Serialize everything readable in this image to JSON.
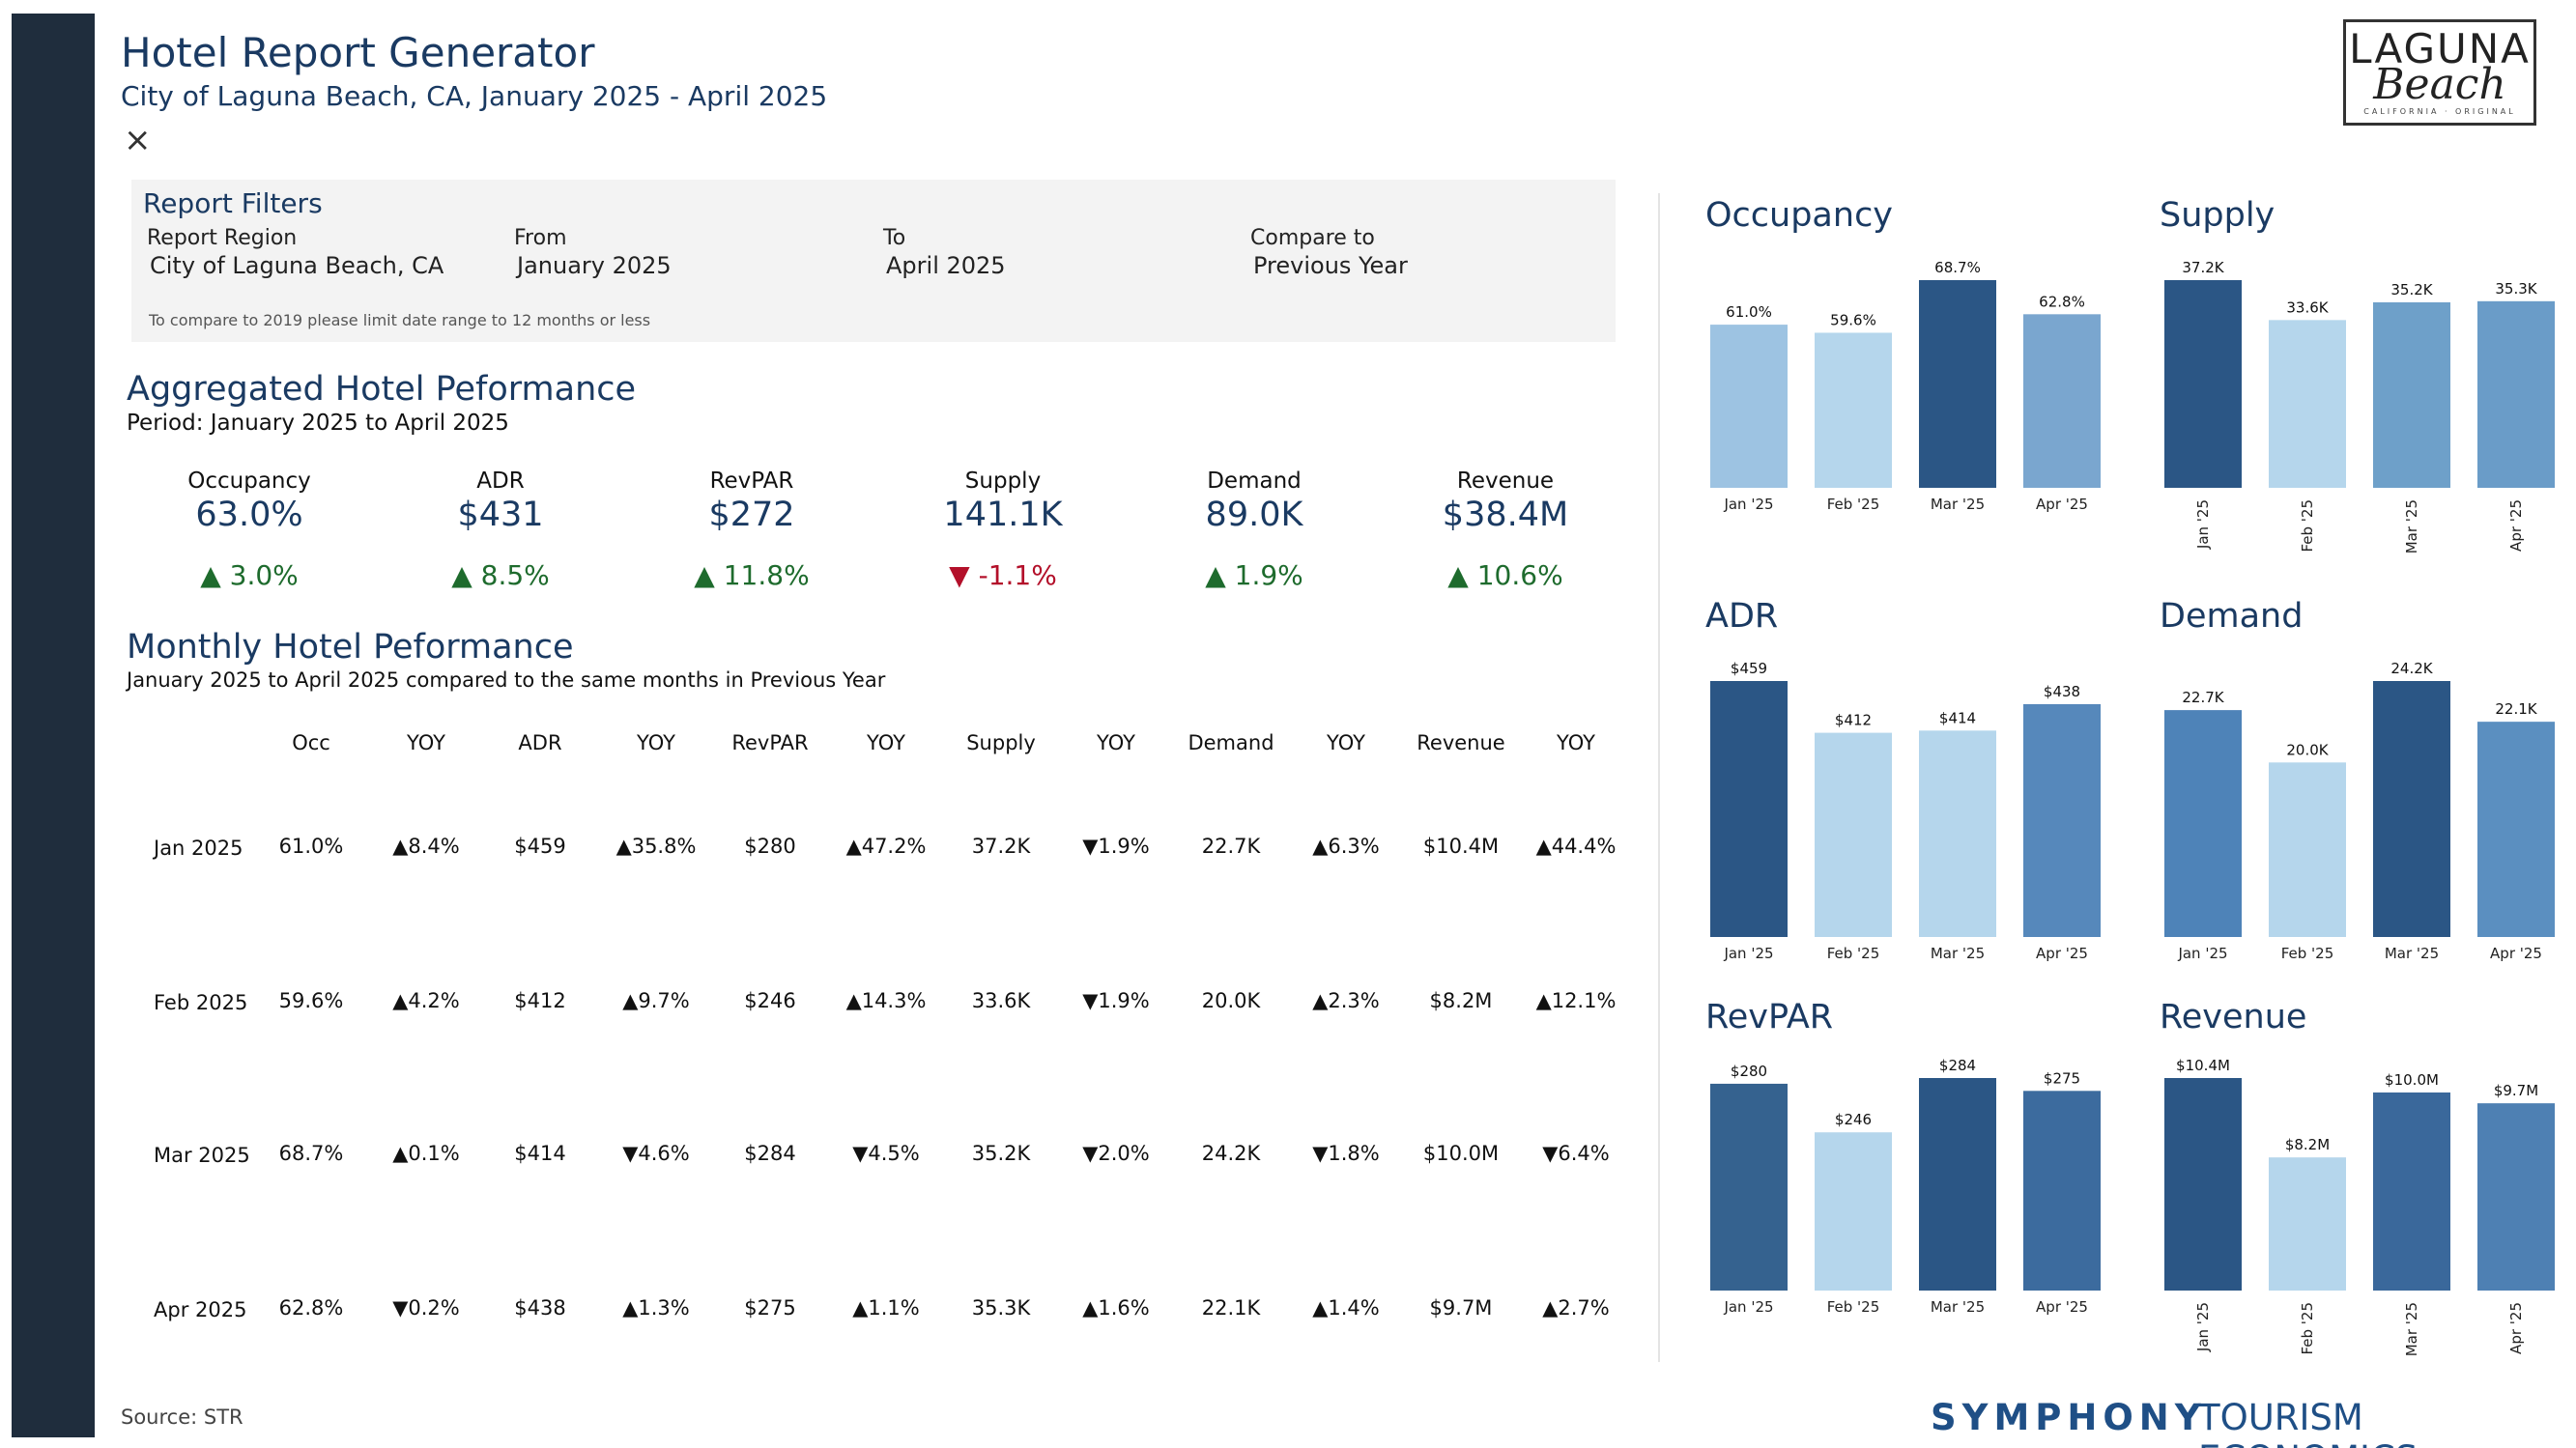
{
  "header": {
    "title": "Hotel Report Generator",
    "subtitle": "City of Laguna Beach, CA, January 2025 - April 2025",
    "close_icon": "×"
  },
  "logo": {
    "line1": "LAGUNA",
    "line2": "Beach",
    "line3": "CALIFORNIA · ORIGINAL"
  },
  "filters": {
    "title": "Report Filters",
    "fields": [
      {
        "label": "Report Region",
        "value": "City of Laguna Beach, CA"
      },
      {
        "label": "From",
        "value": "January 2025"
      },
      {
        "label": "To",
        "value": "April 2025"
      },
      {
        "label": "Compare to",
        "value": "Previous Year"
      }
    ],
    "note": "To compare to 2019 please limit date range to 12 months or less"
  },
  "aggregated": {
    "title": "Aggregated Hotel Peformance",
    "period": "Period: January 2025 to April 2025",
    "kpis": [
      {
        "label": "Occupancy",
        "value": "63.0%",
        "change": "▲ 3.0%",
        "dir": "up"
      },
      {
        "label": "ADR",
        "value": "$431",
        "change": "▲ 8.5%",
        "dir": "up"
      },
      {
        "label": "RevPAR",
        "value": "$272",
        "change": "▲ 11.8%",
        "dir": "up"
      },
      {
        "label": "Supply",
        "value": "141.1K",
        "change": "▼ -1.1%",
        "dir": "down"
      },
      {
        "label": "Demand",
        "value": "89.0K",
        "change": "▲ 1.9%",
        "dir": "up"
      },
      {
        "label": "Revenue",
        "value": "$38.4M",
        "change": "▲ 10.6%",
        "dir": "up"
      }
    ]
  },
  "monthly": {
    "title": "Monthly Hotel Peformance",
    "subtitle": "January 2025 to April 2025 compared to the same months in Previous Year",
    "headers": [
      "Occ",
      "YOY",
      "ADR",
      "YOY",
      "RevPAR",
      "YOY",
      "Supply",
      "YOY",
      "Demand",
      "YOY",
      "Revenue",
      "YOY"
    ],
    "rows": [
      {
        "label": "Jan 2025",
        "cells": [
          "61.0%",
          "▲8.4%",
          "$459",
          "▲35.8%",
          "$280",
          "▲47.2%",
          "37.2K",
          "▼1.9%",
          "22.7K",
          "▲6.3%",
          "$10.4M",
          "▲44.4%"
        ]
      },
      {
        "label": "Feb 2025",
        "cells": [
          "59.6%",
          "▲4.2%",
          "$412",
          "▲9.7%",
          "$246",
          "▲14.3%",
          "33.6K",
          "▼1.9%",
          "20.0K",
          "▲2.3%",
          "$8.2M",
          "▲12.1%"
        ]
      },
      {
        "label": "Mar 2025",
        "cells": [
          "68.7%",
          "▲0.1%",
          "$414",
          "▼4.6%",
          "$284",
          "▼4.5%",
          "35.2K",
          "▼2.0%",
          "24.2K",
          "▼1.8%",
          "$10.0M",
          "▼6.4%"
        ]
      },
      {
        "label": "Apr 2025",
        "cells": [
          "62.8%",
          "▼0.2%",
          "$438",
          "▲1.3%",
          "$275",
          "▲1.1%",
          "35.3K",
          "▲1.6%",
          "22.1K",
          "▲1.4%",
          "$9.7M",
          "▲2.7%"
        ]
      }
    ]
  },
  "chart_data": [
    {
      "type": "bar",
      "title": "Occupancy",
      "categories": [
        "Jan '25",
        "Feb '25",
        "Mar '25",
        "Apr '25"
      ],
      "values": [
        61.0,
        59.6,
        68.7,
        62.8
      ],
      "labels": [
        "61.0%",
        "59.6%",
        "68.7%",
        "62.8%"
      ],
      "colors": [
        "#9dc3e2",
        "#b5d6ec",
        "#2b5685",
        "#7aa6cf"
      ]
    },
    {
      "type": "bar",
      "title": "Supply",
      "categories": [
        "Jan '25",
        "Feb '25",
        "Mar '25",
        "Apr '25"
      ],
      "values": [
        37.2,
        33.6,
        35.2,
        35.3
      ],
      "labels": [
        "37.2K",
        "33.6K",
        "35.2K",
        "35.3K"
      ],
      "colors": [
        "#2b5685",
        "#b5d6ec",
        "#6ea0c9",
        "#6a9cc8"
      ]
    },
    {
      "type": "bar",
      "title": "ADR",
      "categories": [
        "Jan '25",
        "Feb '25",
        "Mar '25",
        "Apr '25"
      ],
      "values": [
        459,
        412,
        414,
        438
      ],
      "labels": [
        "$459",
        "$412",
        "$414",
        "$438"
      ],
      "colors": [
        "#2b5685",
        "#b5d6ec",
        "#b5d6ec",
        "#5688bb"
      ]
    },
    {
      "type": "bar",
      "title": "Demand",
      "categories": [
        "Jan '25",
        "Feb '25",
        "Mar '25",
        "Apr '25"
      ],
      "values": [
        22.7,
        20.0,
        24.2,
        22.1
      ],
      "labels": [
        "22.7K",
        "20.0K",
        "24.2K",
        "22.1K"
      ],
      "colors": [
        "#4e83b8",
        "#b5d6ec",
        "#2b5685",
        "#5b8fc0"
      ]
    },
    {
      "type": "bar",
      "title": "RevPAR",
      "categories": [
        "Jan '25",
        "Feb '25",
        "Mar '25",
        "Apr '25"
      ],
      "values": [
        280,
        246,
        284,
        275
      ],
      "labels": [
        "$280",
        "$246",
        "$284",
        "$275"
      ],
      "colors": [
        "#35628f",
        "#b5d6ec",
        "#2b5685",
        "#3c6b9e"
      ]
    },
    {
      "type": "bar",
      "title": "Revenue",
      "categories": [
        "Jan '25",
        "Feb '25",
        "Mar '25",
        "Apr '25"
      ],
      "values": [
        10.4,
        8.2,
        10.0,
        9.7
      ],
      "labels": [
        "$10.4M",
        "$8.2M",
        "$10.0M",
        "$9.7M"
      ],
      "colors": [
        "#2b5685",
        "#b5d6ec",
        "#3a689b",
        "#4e80b3"
      ]
    }
  ],
  "footer": {
    "source": "Source: STR",
    "brand": "SYMPHONY",
    "brand2": "TOURISM ECONOMICS"
  }
}
